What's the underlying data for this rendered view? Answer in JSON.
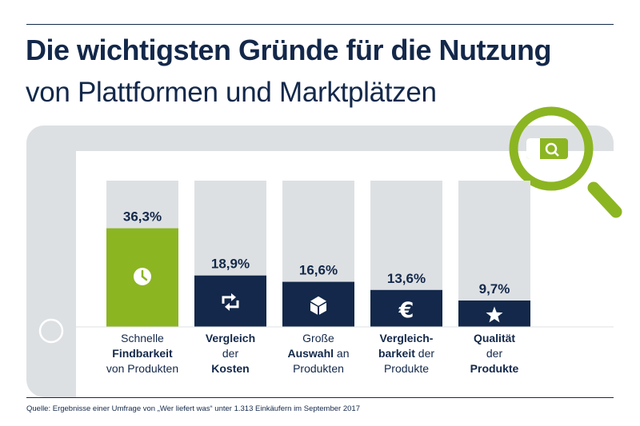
{
  "title_line1": "Die wichtigsten Gründe für die Nutzung",
  "title_line2": "von Plattformen und Marktplätzen",
  "source": "Quelle: Ergebnisse einer Umfrage von „Wer liefert was“ unter 1.313 Einkäufern im September 2017",
  "colors": {
    "navy": "#13284a",
    "green": "#8cb522",
    "frame": "#dde0e3",
    "track": "#dde0e3"
  },
  "chart_data": {
    "type": "bar",
    "title": "Die wichtigsten Gründe für die Nutzung von Plattformen und Marktplätzen",
    "unit": "%",
    "ylim": [
      0,
      42
    ],
    "categories": [
      "Schnelle Findbarkeit von Produkten",
      "Vergleich der Kosten",
      "Große Auswahl an Produkten",
      "Vergleichbarkeit der Produkte",
      "Qualität der Produkte"
    ],
    "values": [
      36.3,
      18.9,
      16.6,
      13.6,
      9.7
    ],
    "value_labels": [
      "36,3%",
      "18,9%",
      "16,6%",
      "13,6%",
      "9,7%"
    ],
    "icons": [
      "clock-icon",
      "exchange-arrows-icon",
      "box-icon",
      "euro-icon",
      "star-icon"
    ],
    "highlight_index": 0
  },
  "category_labels": [
    {
      "line1_a": "Schnelle",
      "line1_b": "",
      "line2_a": "Findbarkeit",
      "line2_b": "",
      "line3_a": "von Produkten",
      "line3_b": ""
    },
    {
      "line1_a": "Vergleich",
      "line1_b": "",
      "line2_a": "der",
      "line2_b": "",
      "line3_a": "Kosten",
      "line3_b": ""
    },
    {
      "line1_a": "Große",
      "line1_b": "",
      "line2_a": "Auswahl",
      "line2_b": " an",
      "line3_a": "Produkten",
      "line3_b": ""
    },
    {
      "line1_a": "Vergleich-",
      "line1_b": "",
      "line2_a": "barkeit",
      "line2_b": " der",
      "line3_a": "Produkte",
      "line3_b": ""
    },
    {
      "line1_a": "Qualität",
      "line1_b": "",
      "line2_a": "der",
      "line2_b": "",
      "line3_a": "Produkte",
      "line3_b": ""
    }
  ]
}
